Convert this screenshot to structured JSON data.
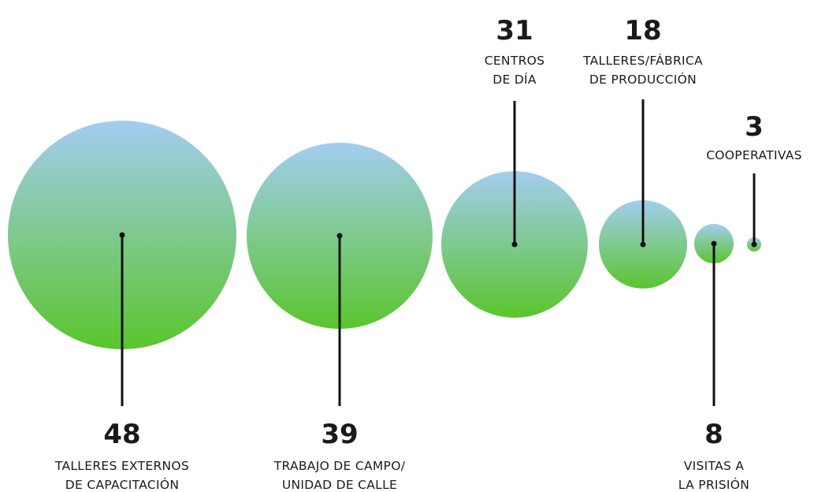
{
  "chart_data": {
    "type": "bubble",
    "colors": {
      "gradient_top": "#a3cdf0",
      "gradient_bottom": "#5ac52d",
      "leader": "#111111",
      "text": "#1a1a1a"
    },
    "items": [
      {
        "value": 48,
        "label_lines": [
          "TALLERES EXTERNOS",
          "DE CAPACITACIÓN"
        ]
      },
      {
        "value": 39,
        "label_lines": [
          "TRABAJO DE CAMPO/",
          "UNIDAD DE CALLE"
        ]
      },
      {
        "value": 31,
        "label_lines": [
          "CENTROS",
          "DE DÍA"
        ]
      },
      {
        "value": 18,
        "label_lines": [
          "TALLERES/FÁBRICA",
          "DE PRODUCCIÓN"
        ]
      },
      {
        "value": 8,
        "label_lines": [
          "VISITAS A",
          "LA PRISIÓN"
        ]
      },
      {
        "value": 3,
        "label_lines": [
          "COOPERATIVAS"
        ]
      }
    ]
  }
}
